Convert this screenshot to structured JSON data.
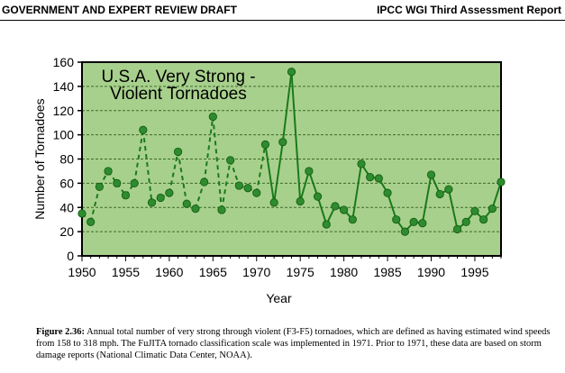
{
  "header": {
    "left": "GOVERNMENT AND EXPERT REVIEW DRAFT",
    "right": "IPCC WGI Third Assessment Report"
  },
  "caption": {
    "label": "Figure 2.36:",
    "text": "Annual total number of very strong through violent (F3-F5) tornadoes, which are defined as having estimated wind speeds from 158 to 318 mph.  The FuJITA tornado classification scale was implemented in 1971. Prior to 1971, these data are based on storm damage reports (National Climatic Data Center, NOAA)."
  },
  "chart_data": {
    "type": "line",
    "title": [
      "U.S.A. Very Strong -",
      "Violent Tornadoes"
    ],
    "xlabel": "Year",
    "ylabel": "Number of Tornadoes",
    "xlim": [
      1950,
      1998
    ],
    "ylim": [
      0,
      160
    ],
    "xticks": [
      1950,
      1955,
      1960,
      1965,
      1970,
      1975,
      1980,
      1985,
      1990,
      1995
    ],
    "yticks": [
      0,
      20,
      40,
      60,
      80,
      100,
      120,
      140,
      160
    ],
    "grid": "horizontal dashed",
    "style_change_year": 1971,
    "colors": {
      "plot_bg": "#a8d08d",
      "line": "#1a7a1a",
      "marker": "#2e8b2e"
    },
    "series": [
      {
        "x": [
          1950,
          1951,
          1952,
          1953,
          1954,
          1955,
          1956,
          1957,
          1958,
          1959,
          1960,
          1961,
          1962,
          1963,
          1964,
          1965,
          1966,
          1967,
          1968,
          1969,
          1970,
          1971,
          1972,
          1973,
          1974,
          1975,
          1976,
          1977,
          1978,
          1979,
          1980,
          1981,
          1982,
          1983,
          1984,
          1985,
          1986,
          1987,
          1988,
          1989,
          1990,
          1991,
          1992,
          1993,
          1994,
          1995,
          1996,
          1997,
          1998
        ],
        "values": [
          35,
          28,
          57,
          70,
          60,
          50,
          60,
          104,
          44,
          48,
          52,
          86,
          43,
          39,
          61,
          115,
          38,
          79,
          58,
          56,
          52,
          92,
          44,
          94,
          152,
          45,
          70,
          49,
          26,
          41,
          38,
          30,
          76,
          65,
          64,
          52,
          30,
          20,
          28,
          27,
          67,
          51,
          55,
          22,
          28,
          37,
          30,
          39,
          61
        ]
      }
    ]
  }
}
